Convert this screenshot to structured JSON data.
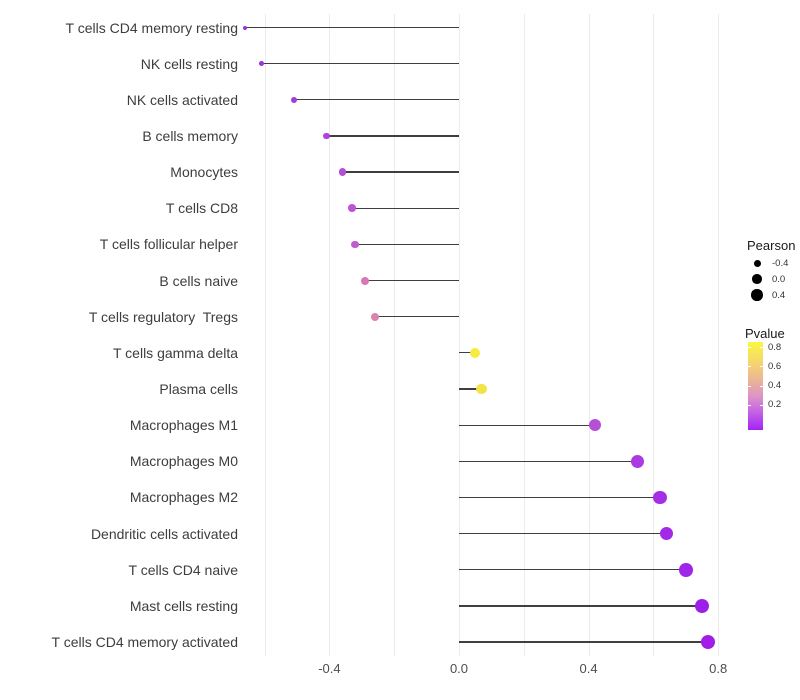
{
  "chart_data": {
    "type": "lollipop",
    "title": "",
    "xlabel": "",
    "ylabel": "",
    "x_axis": {
      "ticks": [
        {
          "label": "-0.4",
          "value": -0.4
        },
        {
          "label": "0.0",
          "value": 0.0
        },
        {
          "label": "0.4",
          "value": 0.4
        },
        {
          "label": "0.8",
          "value": 0.8
        }
      ],
      "grid_values": [
        -0.6,
        -0.4,
        -0.2,
        0.0,
        0.2,
        0.4,
        0.6,
        0.8
      ],
      "range": [
        -0.66,
        0.84
      ]
    },
    "rows": [
      {
        "label": "T cells CD4 memory resting",
        "pearson": -0.66,
        "pvalue": 0.005,
        "color": "#9933DB"
      },
      {
        "label": "NK cells resting",
        "pearson": -0.61,
        "pvalue": 0.01,
        "color": "#9C35DB"
      },
      {
        "label": "NK cells activated",
        "pearson": -0.51,
        "pvalue": 0.03,
        "color": "#A13BDC"
      },
      {
        "label": "B cells memory",
        "pearson": -0.41,
        "pvalue": 0.09,
        "color": "#A944DC"
      },
      {
        "label": "Monocytes",
        "pearson": -0.36,
        "pvalue": 0.13,
        "color": "#B24ED8"
      },
      {
        "label": "T cells CD8",
        "pearson": -0.33,
        "pvalue": 0.17,
        "color": "#BC55D2"
      },
      {
        "label": "T cells follicular helper",
        "pearson": -0.32,
        "pvalue": 0.19,
        "color": "#C05ECB"
      },
      {
        "label": "B cells naive",
        "pearson": -0.29,
        "pvalue": 0.3,
        "color": "#D678B3"
      },
      {
        "label": "T cells regulatory  Tregs",
        "pearson": -0.26,
        "pvalue": 0.38,
        "color": "#D884AE"
      },
      {
        "label": "T cells gamma delta",
        "pearson": 0.05,
        "pvalue": 0.82,
        "color": "#F6EB3E"
      },
      {
        "label": "Plasma cells",
        "pearson": 0.07,
        "pvalue": 0.78,
        "color": "#F2E447"
      },
      {
        "label": "Macrophages M1",
        "pearson": 0.42,
        "pvalue": 0.13,
        "color": "#B44FD6"
      },
      {
        "label": "Macrophages M0",
        "pearson": 0.55,
        "pvalue": 0.05,
        "color": "#AB3BE0"
      },
      {
        "label": "Macrophages M2",
        "pearson": 0.62,
        "pvalue": 0.035,
        "color": "#A52FE4"
      },
      {
        "label": "Dendritic cells activated",
        "pearson": 0.64,
        "pvalue": 0.03,
        "color": "#A22AE6"
      },
      {
        "label": "T cells CD4 naive",
        "pearson": 0.7,
        "pvalue": 0.02,
        "color": "#9F25E8"
      },
      {
        "label": "Mast cells resting",
        "pearson": 0.75,
        "pvalue": 0.012,
        "color": "#9D20EA"
      },
      {
        "label": "T cells CD4 memory activated",
        "pearson": 0.77,
        "pvalue": 0.008,
        "color": "#A21EE8"
      }
    ],
    "legend": {
      "size": {
        "title": "Pearson",
        "entries": [
          {
            "label": "-0.4",
            "diameter": 7
          },
          {
            "label": "0.0",
            "diameter": 9.5
          },
          {
            "label": "0.4",
            "diameter": 11.5
          }
        ]
      },
      "color": {
        "title": "Pvalue",
        "ticks": [
          {
            "label": "0.8",
            "offset": 5
          },
          {
            "label": "0.6",
            "offset": 24.3
          },
          {
            "label": "0.4",
            "offset": 43.6
          },
          {
            "label": "0.2",
            "offset": 62.9
          }
        ],
        "gradient_stops": [
          "#FBF73F 0%",
          "#F3CE79 28%",
          "#E7ADA0 48%",
          "#DC93C6 62%",
          "#C362E5 80%",
          "#A423F5 100%"
        ]
      }
    },
    "stem_color": "#3f3f3f",
    "grid_color": "#ececec"
  }
}
